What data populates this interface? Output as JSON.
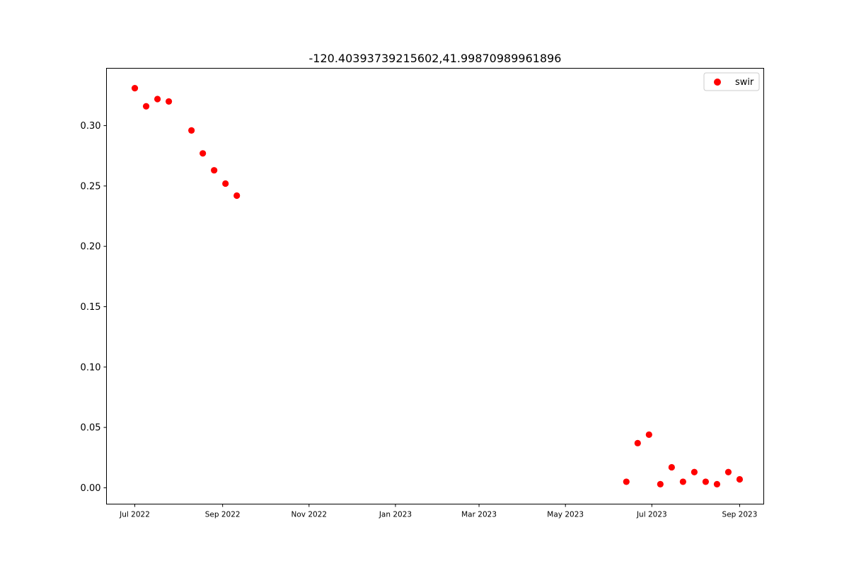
{
  "chart_data": {
    "type": "scatter",
    "title": "-120.40393739215602,41.99870989961896",
    "xlabel": "",
    "ylabel": "",
    "x_type": "date",
    "xlim": [
      "2022-06-11",
      "2023-09-18"
    ],
    "ylim": [
      -0.0135,
      0.3475
    ],
    "x_ticks": [
      {
        "date": "2022-07-01",
        "label": "Jul 2022"
      },
      {
        "date": "2022-09-01",
        "label": "Sep 2022"
      },
      {
        "date": "2022-11-01",
        "label": "Nov 2022"
      },
      {
        "date": "2023-01-01",
        "label": "Jan 2023"
      },
      {
        "date": "2023-03-01",
        "label": "Mar 2023"
      },
      {
        "date": "2023-05-01",
        "label": "May 2023"
      },
      {
        "date": "2023-07-01",
        "label": "Jul 2023"
      },
      {
        "date": "2023-09-01",
        "label": "Sep 2023"
      }
    ],
    "y_ticks": [
      {
        "value": 0.0,
        "label": "0.00"
      },
      {
        "value": 0.05,
        "label": "0.05"
      },
      {
        "value": 0.1,
        "label": "0.10"
      },
      {
        "value": 0.15,
        "label": "0.15"
      },
      {
        "value": 0.2,
        "label": "0.20"
      },
      {
        "value": 0.25,
        "label": "0.25"
      },
      {
        "value": 0.3,
        "label": "0.30"
      }
    ],
    "grid": false,
    "legend": {
      "position": "top-right"
    },
    "series": [
      {
        "name": "swir",
        "color": "#ff0000",
        "points": [
          {
            "x": "2022-07-01",
            "y": 0.331
          },
          {
            "x": "2022-07-09",
            "y": 0.316
          },
          {
            "x": "2022-07-17",
            "y": 0.322
          },
          {
            "x": "2022-07-25",
            "y": 0.32
          },
          {
            "x": "2022-08-10",
            "y": 0.296
          },
          {
            "x": "2022-08-18",
            "y": 0.277
          },
          {
            "x": "2022-08-26",
            "y": 0.263
          },
          {
            "x": "2022-09-03",
            "y": 0.252
          },
          {
            "x": "2022-09-11",
            "y": 0.242
          },
          {
            "x": "2023-06-13",
            "y": 0.005
          },
          {
            "x": "2023-06-21",
            "y": 0.037
          },
          {
            "x": "2023-06-29",
            "y": 0.044
          },
          {
            "x": "2023-07-07",
            "y": 0.003
          },
          {
            "x": "2023-07-15",
            "y": 0.017
          },
          {
            "x": "2023-07-23",
            "y": 0.005
          },
          {
            "x": "2023-07-31",
            "y": 0.013
          },
          {
            "x": "2023-08-08",
            "y": 0.005
          },
          {
            "x": "2023-08-16",
            "y": 0.003
          },
          {
            "x": "2023-08-24",
            "y": 0.013
          },
          {
            "x": "2023-09-01",
            "y": 0.007
          }
        ]
      }
    ]
  }
}
